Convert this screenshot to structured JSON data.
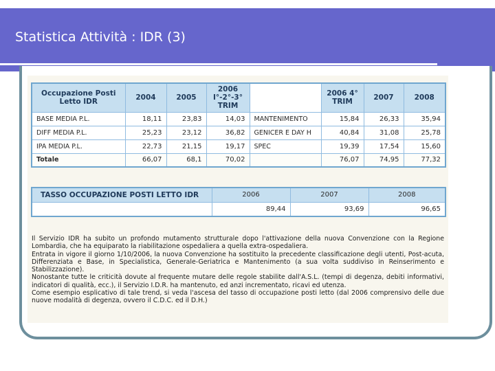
{
  "slide": {
    "title": "Statistica Attività : IDR (3)"
  },
  "occupancy_table": {
    "corner": "Occupazione Posti Letto IDR",
    "headers": {
      "y2004": "2004",
      "y2005": "2005",
      "y2006a": "2006 I°-2°-3° TRIM",
      "y2006b": "2006 4° TRIM",
      "y2007": "2007",
      "y2008": "2008"
    },
    "rows": [
      {
        "label": "BASE MEDIA P.L.",
        "v2004": "18,11",
        "v2005": "23,83",
        "v2006a": "14,03",
        "category": "MANTENIMENTO",
        "v2006b": "15,84",
        "v2007": "26,33",
        "v2008": "35,94"
      },
      {
        "label": "DIFF MEDIA P.L.",
        "v2004": "25,23",
        "v2005": "23,12",
        "v2006a": "36,82",
        "category": "GENICER E DAY H",
        "v2006b": "40,84",
        "v2007": "31,08",
        "v2008": "25,78"
      },
      {
        "label": "IPA MEDIA P.L.",
        "v2004": "22,73",
        "v2005": "21,15",
        "v2006a": "19,17",
        "category": "SPEC",
        "v2006b": "19,39",
        "v2007": "17,54",
        "v2008": "15,60"
      },
      {
        "label": "Totale",
        "v2004": "66,07",
        "v2005": "68,1",
        "v2006a": "70,02",
        "category": "",
        "v2006b": "76,07",
        "v2007": "74,95",
        "v2008": "77,32"
      }
    ]
  },
  "rate_table": {
    "label": "TASSO OCCUPAZIONE POSTI LETTO IDR",
    "years": [
      "2006",
      "2007",
      "2008"
    ],
    "values": [
      "89,44",
      "93,69",
      "96,65"
    ]
  },
  "notes": [
    "Il Servizio IDR ha subito un profondo mutamento strutturale dopo l'attivazione della nuova Convenzione con la Regione Lombardia, che ha equiparato la riabilitazione ospedaliera a quella extra-ospedaliera.",
    "Entrata in vigore il giorno 1/10/2006, la nuova Convenzione ha sostituito la precedente classificazione degli utenti, Post-acuta, Differenziata e Base, in Specialistica, Generale-Geriatrica e Mantenimento (a sua volta suddiviso in Reinserimento e Stabilizzazione).",
    "Nonostante tutte le criticità dovute al frequente mutare delle regole stabilite dall'A.S.L. (tempi di degenza, debiti informativi, indicatori di qualità, ecc.), il Servizio I.D.R. ha mantenuto, ed anzi incrementato, ricavi ed utenza.",
    "Come esempio esplicativo di tale trend, si veda l'ascesa del tasso di occupazione posti letto (dal 2006 comprensivo delle due nuove modalità di degenza, ovvero il C.D.C. ed il D.H.)"
  ]
}
